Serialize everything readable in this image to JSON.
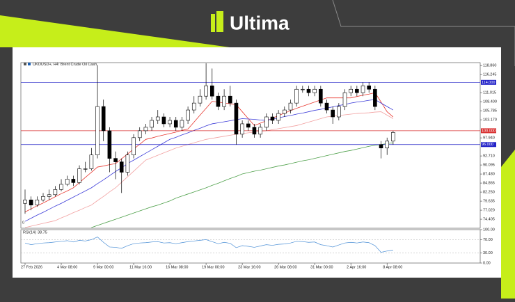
{
  "brand": "Ultima",
  "chart_data": {
    "type": "candlestick",
    "title": "UKOUSD+, H4: Brent Crude Oil Cash",
    "corner_label": "0",
    "categories": [
      "27 Feb 2026",
      null,
      null,
      null,
      null,
      null,
      "4 Mar 08:00",
      null,
      null,
      null,
      null,
      null,
      "9 Mar 00:00",
      null,
      null,
      null,
      null,
      null,
      "11 Mar 16:00",
      null,
      null,
      null,
      null,
      null,
      "16 Mar 08:00",
      null,
      null,
      null,
      null,
      null,
      "19 Mar 00:00",
      null,
      null,
      null,
      null,
      null,
      "23 Mar 16:00",
      null,
      null,
      null,
      null,
      null,
      "26 Mar 08:00",
      null,
      null,
      null,
      null,
      null,
      "31 Mar 00:00",
      null,
      null,
      null,
      null,
      null,
      "2 Apr 16:00",
      null,
      null,
      null,
      null,
      null,
      "8 Apr 08:00",
      null
    ],
    "open": [
      79,
      80,
      78.5,
      80,
      81,
      81.5,
      83,
      84.5,
      86,
      85,
      89,
      89,
      93,
      107,
      100,
      92,
      91,
      88,
      93,
      98,
      100,
      101,
      103,
      104,
      102,
      103,
      101,
      103,
      106,
      108,
      110,
      113,
      110,
      107,
      110,
      108,
      99,
      102,
      101,
      99,
      101,
      104,
      103,
      105,
      106,
      108,
      112,
      112,
      111,
      112,
      108,
      106,
      104,
      107,
      111,
      112,
      111,
      113,
      112,
      96,
      95,
      97
    ],
    "high": [
      83,
      81,
      81,
      82,
      83,
      84,
      86,
      87,
      87,
      90,
      91,
      95,
      119,
      109,
      101,
      94,
      92,
      94,
      99,
      101,
      102,
      104,
      106,
      105,
      104,
      104,
      104,
      107,
      110,
      112,
      119.5,
      118,
      111,
      112,
      113,
      109,
      103,
      103,
      102,
      102,
      105,
      105,
      106,
      107,
      109,
      113,
      113,
      113,
      113,
      113,
      109,
      107,
      108,
      112,
      113,
      113,
      114,
      114,
      113,
      97,
      98,
      100
    ],
    "low": [
      76,
      77,
      78,
      79.5,
      80,
      81,
      82.5,
      84,
      84,
      84.5,
      88,
      88.5,
      92,
      97,
      88,
      86,
      82,
      87,
      92,
      97,
      99,
      100,
      102,
      101,
      101,
      100,
      100,
      102,
      105,
      107,
      109,
      109,
      106,
      106,
      107,
      96,
      98,
      100,
      98,
      98,
      100,
      102,
      102,
      104,
      105,
      107,
      111,
      110,
      110,
      107,
      105,
      102,
      103,
      106,
      110,
      110,
      110,
      111,
      106,
      92,
      93,
      96
    ],
    "close": [
      80,
      78.5,
      80,
      81,
      81.5,
      83,
      84.5,
      86,
      85,
      89,
      89,
      93,
      107,
      100,
      92,
      91,
      88,
      93,
      98,
      100,
      101,
      103,
      104,
      102,
      103,
      101,
      103,
      106,
      108,
      110,
      113,
      110,
      107,
      110,
      108,
      99,
      102,
      101,
      99,
      101,
      104,
      103,
      105,
      106,
      108,
      112,
      112,
      111,
      112,
      108,
      106,
      104,
      107,
      111,
      112,
      111,
      113,
      112,
      107,
      95,
      97,
      99.5
    ],
    "candle_colors": {
      "up": "#ffffff",
      "down": "#000000"
    },
    "lines": [
      {
        "color": "#e8372f",
        "values": [
          76.5,
          77.4,
          78.3,
          79.1,
          80,
          80.9,
          81.8,
          82.6,
          83.5,
          85,
          86.5,
          88,
          89.5,
          89.8,
          90.2,
          90.5,
          91.9,
          93.3,
          94.7,
          96.1,
          97.5,
          97.9,
          98.4,
          98.8,
          99.2,
          99.6,
          100.1,
          100.5,
          102.5,
          104.5,
          106.5,
          108.5,
          108.3,
          108,
          107.8,
          107.5,
          105.5,
          103.5,
          101.5,
          102.2,
          102.9,
          103.6,
          104.4,
          105.1,
          105.8,
          106.5,
          107.1,
          107.7,
          108.3,
          108.9,
          109.5,
          109.5,
          109.5,
          109.5,
          109.5,
          109.9,
          110.3,
          110.6,
          111,
          108.3,
          105.5,
          104
        ]
      },
      {
        "color": "#3a3ad8",
        "values": [
          73.8,
          74.7,
          75.6,
          76.4,
          77.3,
          78.2,
          79,
          79.9,
          80.8,
          81.7,
          82.6,
          83.5,
          84.7,
          85.8,
          87,
          88.2,
          89.3,
          90.5,
          91.5,
          92.5,
          93.5,
          94.5,
          95.5,
          96.5,
          97.5,
          98.1,
          98.8,
          99.4,
          100.1,
          100.7,
          101.4,
          102,
          102.3,
          102.6,
          102.9,
          103.2,
          103.5,
          103.4,
          103.3,
          103.1,
          103,
          103.4,
          103.7,
          104.1,
          104.4,
          104.8,
          105.1,
          105.5,
          105.9,
          106.2,
          106.6,
          106.9,
          107.3,
          107.6,
          108,
          108.3,
          108.5,
          108.8,
          109,
          108,
          107,
          106
        ]
      },
      {
        "color": "#f2a0a0",
        "values": [
          72,
          72.4,
          72.8,
          73.2,
          73.6,
          74,
          74.8,
          75.5,
          76.3,
          77,
          77.8,
          78.5,
          79.8,
          81,
          82.3,
          83.5,
          85.1,
          86.7,
          88.3,
          89.9,
          91.5,
          92.2,
          92.9,
          93.6,
          94.3,
          95,
          95.5,
          96,
          96.5,
          97,
          97.5,
          97.8,
          98.1,
          98.4,
          98.7,
          99,
          99.2,
          99.4,
          99.6,
          99.8,
          100,
          100.3,
          100.6,
          100.9,
          101.2,
          101.5,
          102,
          102.5,
          103,
          103.5,
          104,
          104.2,
          104.4,
          104.6,
          104.8,
          105,
          105.1,
          105.2,
          105.4,
          105.5,
          104.5,
          103.5
        ]
      },
      {
        "color": "#4ea04a",
        "values": [
          null,
          null,
          null,
          null,
          null,
          null,
          null,
          null,
          null,
          null,
          null,
          72,
          72.6,
          73.2,
          73.8,
          74.4,
          75,
          75.6,
          76.2,
          76.8,
          77.4,
          78,
          78.5,
          79.1,
          79.7,
          80.5,
          81.1,
          81.7,
          82.3,
          82.9,
          83.5,
          84.2,
          84.8,
          85.5,
          86.2,
          86.8,
          87.5,
          87.9,
          88.3,
          88.6,
          89,
          89.4,
          89.8,
          90.1,
          90.5,
          90.9,
          91.3,
          91.6,
          92,
          92.4,
          92.8,
          93.2,
          93.6,
          94,
          94.3,
          94.7,
          95.1,
          95.5,
          95.8,
          96,
          96.3,
          96.5
        ]
      }
    ],
    "levels": [
      {
        "value": 114,
        "label": "114.000",
        "color": "#2323c8"
      },
      {
        "value": 100,
        "label": "100.000",
        "color": "#d83030"
      },
      {
        "value": 96,
        "label": "96.000",
        "color": "#2323c8"
      }
    ],
    "ylim": [
      71.8,
      119.7
    ],
    "yticks": [
      {
        "value": 118.86,
        "label": "118.860"
      },
      116.245,
      111.015,
      {
        "value": 108.4,
        "label": "108.400"
      },
      105.785,
      {
        "value": 103.17,
        "label": "103.170"
      },
      {
        "value": 97.94,
        "label": "97.940"
      },
      {
        "value": 92.71,
        "label": "92.710"
      },
      90.095,
      {
        "value": 87.48,
        "label": "87.480"
      },
      84.865,
      {
        "value": 82.25,
        "label": "82.250"
      },
      79.635,
      {
        "value": 77.02,
        "label": "77.020"
      },
      74.405
    ],
    "rsi": {
      "label": "RSI(14)",
      "color": "#4b8fd6",
      "ylim": [
        0,
        100
      ],
      "yticks": [
        {
          "value": 100,
          "label": "100.00"
        },
        {
          "value": 70,
          "label": "70.00"
        },
        {
          "value": 30,
          "label": "30.00"
        },
        {
          "value": 0,
          "label": "0.00"
        }
      ],
      "values": [
        60,
        55,
        58,
        60,
        61,
        63,
        65,
        67,
        63,
        68,
        66,
        70,
        78,
        62,
        48,
        47,
        44,
        52,
        58,
        60,
        61,
        63,
        64,
        60,
        61,
        58,
        61,
        64,
        66,
        68,
        70,
        64,
        58,
        62,
        59,
        46,
        52,
        50,
        47,
        51,
        55,
        53,
        56,
        57,
        60,
        65,
        64,
        62,
        63,
        55,
        52,
        48,
        54,
        60,
        62,
        60,
        63,
        61,
        52,
        32,
        36,
        38.75
      ]
    }
  }
}
